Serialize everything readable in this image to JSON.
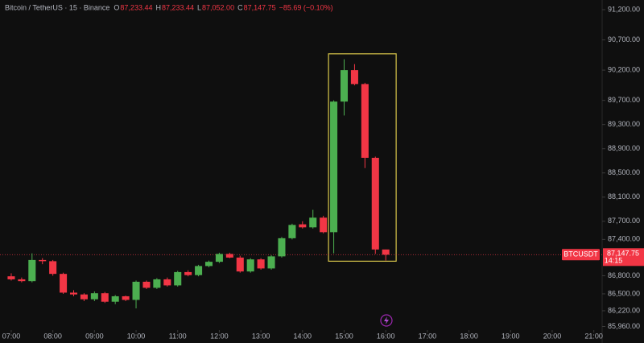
{
  "chart_data": {
    "type": "candlestick",
    "title": "Bitcoin / TetherUS · 15 · Binance",
    "ohlc_legend": [
      {
        "label": "O",
        "value": "87,233.44"
      },
      {
        "label": "H",
        "value": "87,233.44"
      },
      {
        "label": "L",
        "value": "87,052.00"
      },
      {
        "label": "C",
        "value": "87,147.75"
      }
    ],
    "change": "−85.69 (−0.10%)",
    "x": [
      7,
      7.25,
      7.5,
      7.75,
      8,
      8.25,
      8.5,
      8.75,
      9,
      9.25,
      9.5,
      9.75,
      10,
      10.25,
      10.5,
      10.75,
      11,
      11.25,
      11.5,
      11.75,
      12,
      12.25,
      12.5,
      12.75,
      13,
      13.25,
      13.5,
      13.75,
      14,
      14.25,
      14.5,
      14.75,
      15,
      15.25,
      15.5,
      15.75,
      16
    ],
    "open": [
      86790,
      86740,
      86710,
      87060,
      87040,
      86830,
      86520,
      86490,
      86410,
      86510,
      86370,
      86460,
      86400,
      86700,
      86600,
      86740,
      86640,
      86860,
      86810,
      86960,
      87030,
      87160,
      87100,
      86870,
      87070,
      86920,
      87120,
      87420,
      87650,
      87600,
      87760,
      87520,
      89680,
      90200,
      89970,
      88750,
      87233.44
    ],
    "high": [
      86840,
      86770,
      87170,
      87090,
      87060,
      86850,
      86560,
      86510,
      86540,
      86530,
      86480,
      86470,
      86720,
      86720,
      86760,
      86770,
      86880,
      86890,
      86980,
      87050,
      87180,
      87180,
      87130,
      87090,
      87090,
      87140,
      87440,
      87660,
      87700,
      87890,
      87790,
      89700,
      90380,
      90300,
      89990,
      88770,
      87233.44
    ],
    "low": [
      86720,
      86690,
      86690,
      86990,
      86800,
      86500,
      86460,
      86380,
      86380,
      86350,
      86330,
      86380,
      86260,
      86580,
      86580,
      86620,
      86620,
      86790,
      86790,
      86940,
      87010,
      87090,
      86850,
      86850,
      86900,
      86900,
      87100,
      87400,
      87580,
      87580,
      87500,
      87170,
      89450,
      89950,
      88580,
      87160,
      87052
    ],
    "close": [
      86740,
      86710,
      87060,
      87040,
      86830,
      86520,
      86490,
      86410,
      86510,
      86370,
      86460,
      86400,
      86700,
      86600,
      86740,
      86640,
      86860,
      86810,
      86960,
      87030,
      87160,
      87100,
      86870,
      87070,
      86920,
      87120,
      87420,
      87640,
      87600,
      87760,
      87520,
      89680,
      90200,
      89970,
      88750,
      87233.44,
      87147.75
    ],
    "up_color": "#4caf50",
    "down_color": "#f23645",
    "xlim": [
      6.73,
      21.2
    ],
    "xticks": [
      {
        "value": 7,
        "label": "07:00"
      },
      {
        "value": 8,
        "label": "08:00"
      },
      {
        "value": 9,
        "label": "09:00"
      },
      {
        "value": 10,
        "label": "10:00"
      },
      {
        "value": 11,
        "label": "11:00"
      },
      {
        "value": 12,
        "label": "12:00"
      },
      {
        "value": 13,
        "label": "13:00"
      },
      {
        "value": 14,
        "label": "14:00"
      },
      {
        "value": 15,
        "label": "15:00"
      },
      {
        "value": 16,
        "label": "16:00"
      },
      {
        "value": 17,
        "label": "17:00"
      },
      {
        "value": 18,
        "label": "18:00"
      },
      {
        "value": 19,
        "label": "19:00"
      },
      {
        "value": 20,
        "label": "20:00"
      },
      {
        "value": 21,
        "label": "21:00"
      }
    ],
    "ylim": [
      85900,
      91360
    ],
    "yticks": [
      {
        "value": 91200,
        "label": "91,200.00"
      },
      {
        "value": 90700,
        "label": "90,700.00"
      },
      {
        "value": 90200,
        "label": "90,200.00"
      },
      {
        "value": 89700,
        "label": "89,700.00"
      },
      {
        "value": 89300,
        "label": "89,300.00"
      },
      {
        "value": 88900,
        "label": "88,900.00"
      },
      {
        "value": 88500,
        "label": "88,500.00"
      },
      {
        "value": 88100,
        "label": "88,100.00"
      },
      {
        "value": 87700,
        "label": "87,700.00"
      },
      {
        "value": 87400,
        "label": "87,400.00"
      },
      {
        "value": 86800,
        "label": "86,800.00"
      },
      {
        "value": 86500,
        "label": "86,500.00"
      },
      {
        "value": 86220,
        "label": "86,220.00"
      },
      {
        "value": 85960,
        "label": "85,960.00"
      }
    ],
    "grid": false,
    "last_price": {
      "value": 87147.75,
      "label": "87,147.75"
    },
    "symbol_tag": "BTCUSDT",
    "countdown": "14:15",
    "highlight": {
      "xlim": [
        14.625,
        16.25
      ],
      "ylim": [
        87040,
        90470
      ],
      "color": "#d8c64a"
    }
  }
}
